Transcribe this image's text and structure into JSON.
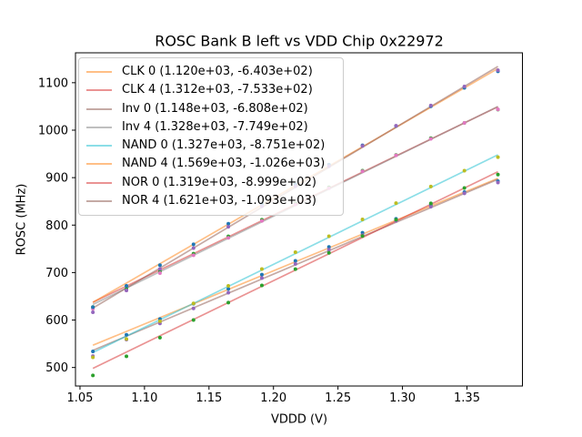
{
  "figure": {
    "background_color": "#ffffff",
    "frame_color": "#000000",
    "text_color": "#000000"
  },
  "chart_data": {
    "type": "scatter",
    "title": "ROSC Bank B left vs VDD Chip 0x22972",
    "xlabel": "VDDD (V)",
    "ylabel": "ROSC (MHz)",
    "grid": false,
    "legend_position": "upper-left",
    "legend_border_color": "#cccccc",
    "xlim": [
      1.0465,
      1.393
    ],
    "ylim": [
      461,
      1163
    ],
    "x_ticks": [
      1.05,
      1.1,
      1.15,
      1.2,
      1.25,
      1.3,
      1.35
    ],
    "x_tick_labels": [
      "1.05",
      "1.10",
      "1.15",
      "1.20",
      "1.25",
      "1.30",
      "1.35"
    ],
    "y_ticks": [
      500,
      600,
      700,
      800,
      900,
      1000,
      1100
    ],
    "y_tick_labels": [
      "500",
      "600",
      "700",
      "800",
      "900",
      "1000",
      "1100"
    ],
    "x": [
      1.06,
      1.086,
      1.112,
      1.138,
      1.165,
      1.191,
      1.217,
      1.243,
      1.269,
      1.295,
      1.322,
      1.348,
      1.374
    ],
    "line_alpha": 0.5,
    "series": [
      {
        "name": "CLK 0",
        "legend_label": "CLK 0 (1.120e+03, -6.403e+02)",
        "fit_slope": 1120.0,
        "fit_intercept": -640.3,
        "line_color": "#ff7f0e",
        "marker_color": "#1f77b4",
        "y": [
          533.9,
          569.0,
          602.1,
          634.3,
          665.5,
          695.6,
          724.7,
          753.9,
          784.0,
          813.1,
          842.3,
          869.5,
          892.6
        ]
      },
      {
        "name": "CLK 4",
        "legend_label": "CLK 4 (1.312e+03, -7.533e+02)",
        "fit_slope": 1312.0,
        "fit_intercept": -753.3,
        "line_color": "#d62728",
        "marker_color": "#2ca02c",
        "y": [
          627.4,
          665.5,
          702.6,
          739.8,
          776.2,
          811.3,
          845.4,
          879.5,
          914.6,
          947.7,
          983.2,
          1015.3,
          1043.4
        ]
      },
      {
        "name": "Inv 0",
        "legend_label": "Inv 0 (1.148e+03, -6.808e+02)",
        "fit_slope": 1148.0,
        "fit_intercept": -680.8,
        "line_color": "#8c564b",
        "marker_color": "#9467bd",
        "y": [
          524.1,
          558.9,
          592.8,
          624.6,
          657.6,
          688.5,
          718.3,
          748.2,
          779.0,
          808.9,
          838.9,
          866.8,
          889.6
        ]
      },
      {
        "name": "Inv 4",
        "legend_label": "Inv 4 (1.328e+03, -7.749e+02)",
        "fit_slope": 1328.0,
        "fit_intercept": -774.9,
        "line_color": "#7f7f7f",
        "marker_color": "#e377c2",
        "y": [
          623.8,
          662.3,
          698.8,
          736.4,
          773.2,
          808.8,
          843.3,
          877.8,
          913.3,
          946.9,
          981.7,
          1015.2,
          1043.8
        ]
      },
      {
        "name": "NAND 0",
        "legend_label": "NAND 0 (1.327e+03, -8.751e+02)",
        "fit_slope": 1327.0,
        "fit_intercept": -875.1,
        "line_color": "#17becf",
        "marker_color": "#bcbd22",
        "y": [
          521.5,
          560.0,
          597.5,
          635.0,
          671.9,
          707.4,
          742.9,
          776.4,
          811.9,
          846.4,
          881.2,
          914.7,
          943.2
        ]
      },
      {
        "name": "NAND 4",
        "legend_label": "NAND 4 (1.569e+03, -1.026e+03)",
        "fit_slope": 1569.0,
        "fit_intercept": -1026.0,
        "line_color": "#ff7f0e",
        "marker_color": "#1f77b4",
        "y": [
          627.1,
          671.9,
          715.7,
          759.5,
          802.9,
          844.7,
          885.5,
          927.3,
          968.1,
          1008.9,
          1050.3,
          1089.1,
          1123.9
        ]
      },
      {
        "name": "NOR 0",
        "legend_label": "NOR 0 (1.319e+03, -8.999e+02)",
        "fit_slope": 1319.0,
        "fit_intercept": -899.9,
        "line_color": "#d62728",
        "marker_color": "#2ca02c",
        "y": [
          483.2,
          523.5,
          562.8,
          600.1,
          636.7,
          673.0,
          707.3,
          741.6,
          776.9,
          811.2,
          845.8,
          878.1,
          906.4
        ]
      },
      {
        "name": "NOR 4",
        "legend_label": "NOR 4 (1.621e+03, -1.093e+03)",
        "fit_slope": 1621.0,
        "fit_intercept": -1093.0,
        "line_color": "#8c564b",
        "marker_color": "#9467bd",
        "y": [
          616.3,
          662.4,
          707.6,
          751.7,
          796.5,
          839.6,
          881.8,
          923.9,
          967.0,
          1009.2,
          1052.0,
          1092.1,
          1126.3
        ]
      }
    ]
  }
}
